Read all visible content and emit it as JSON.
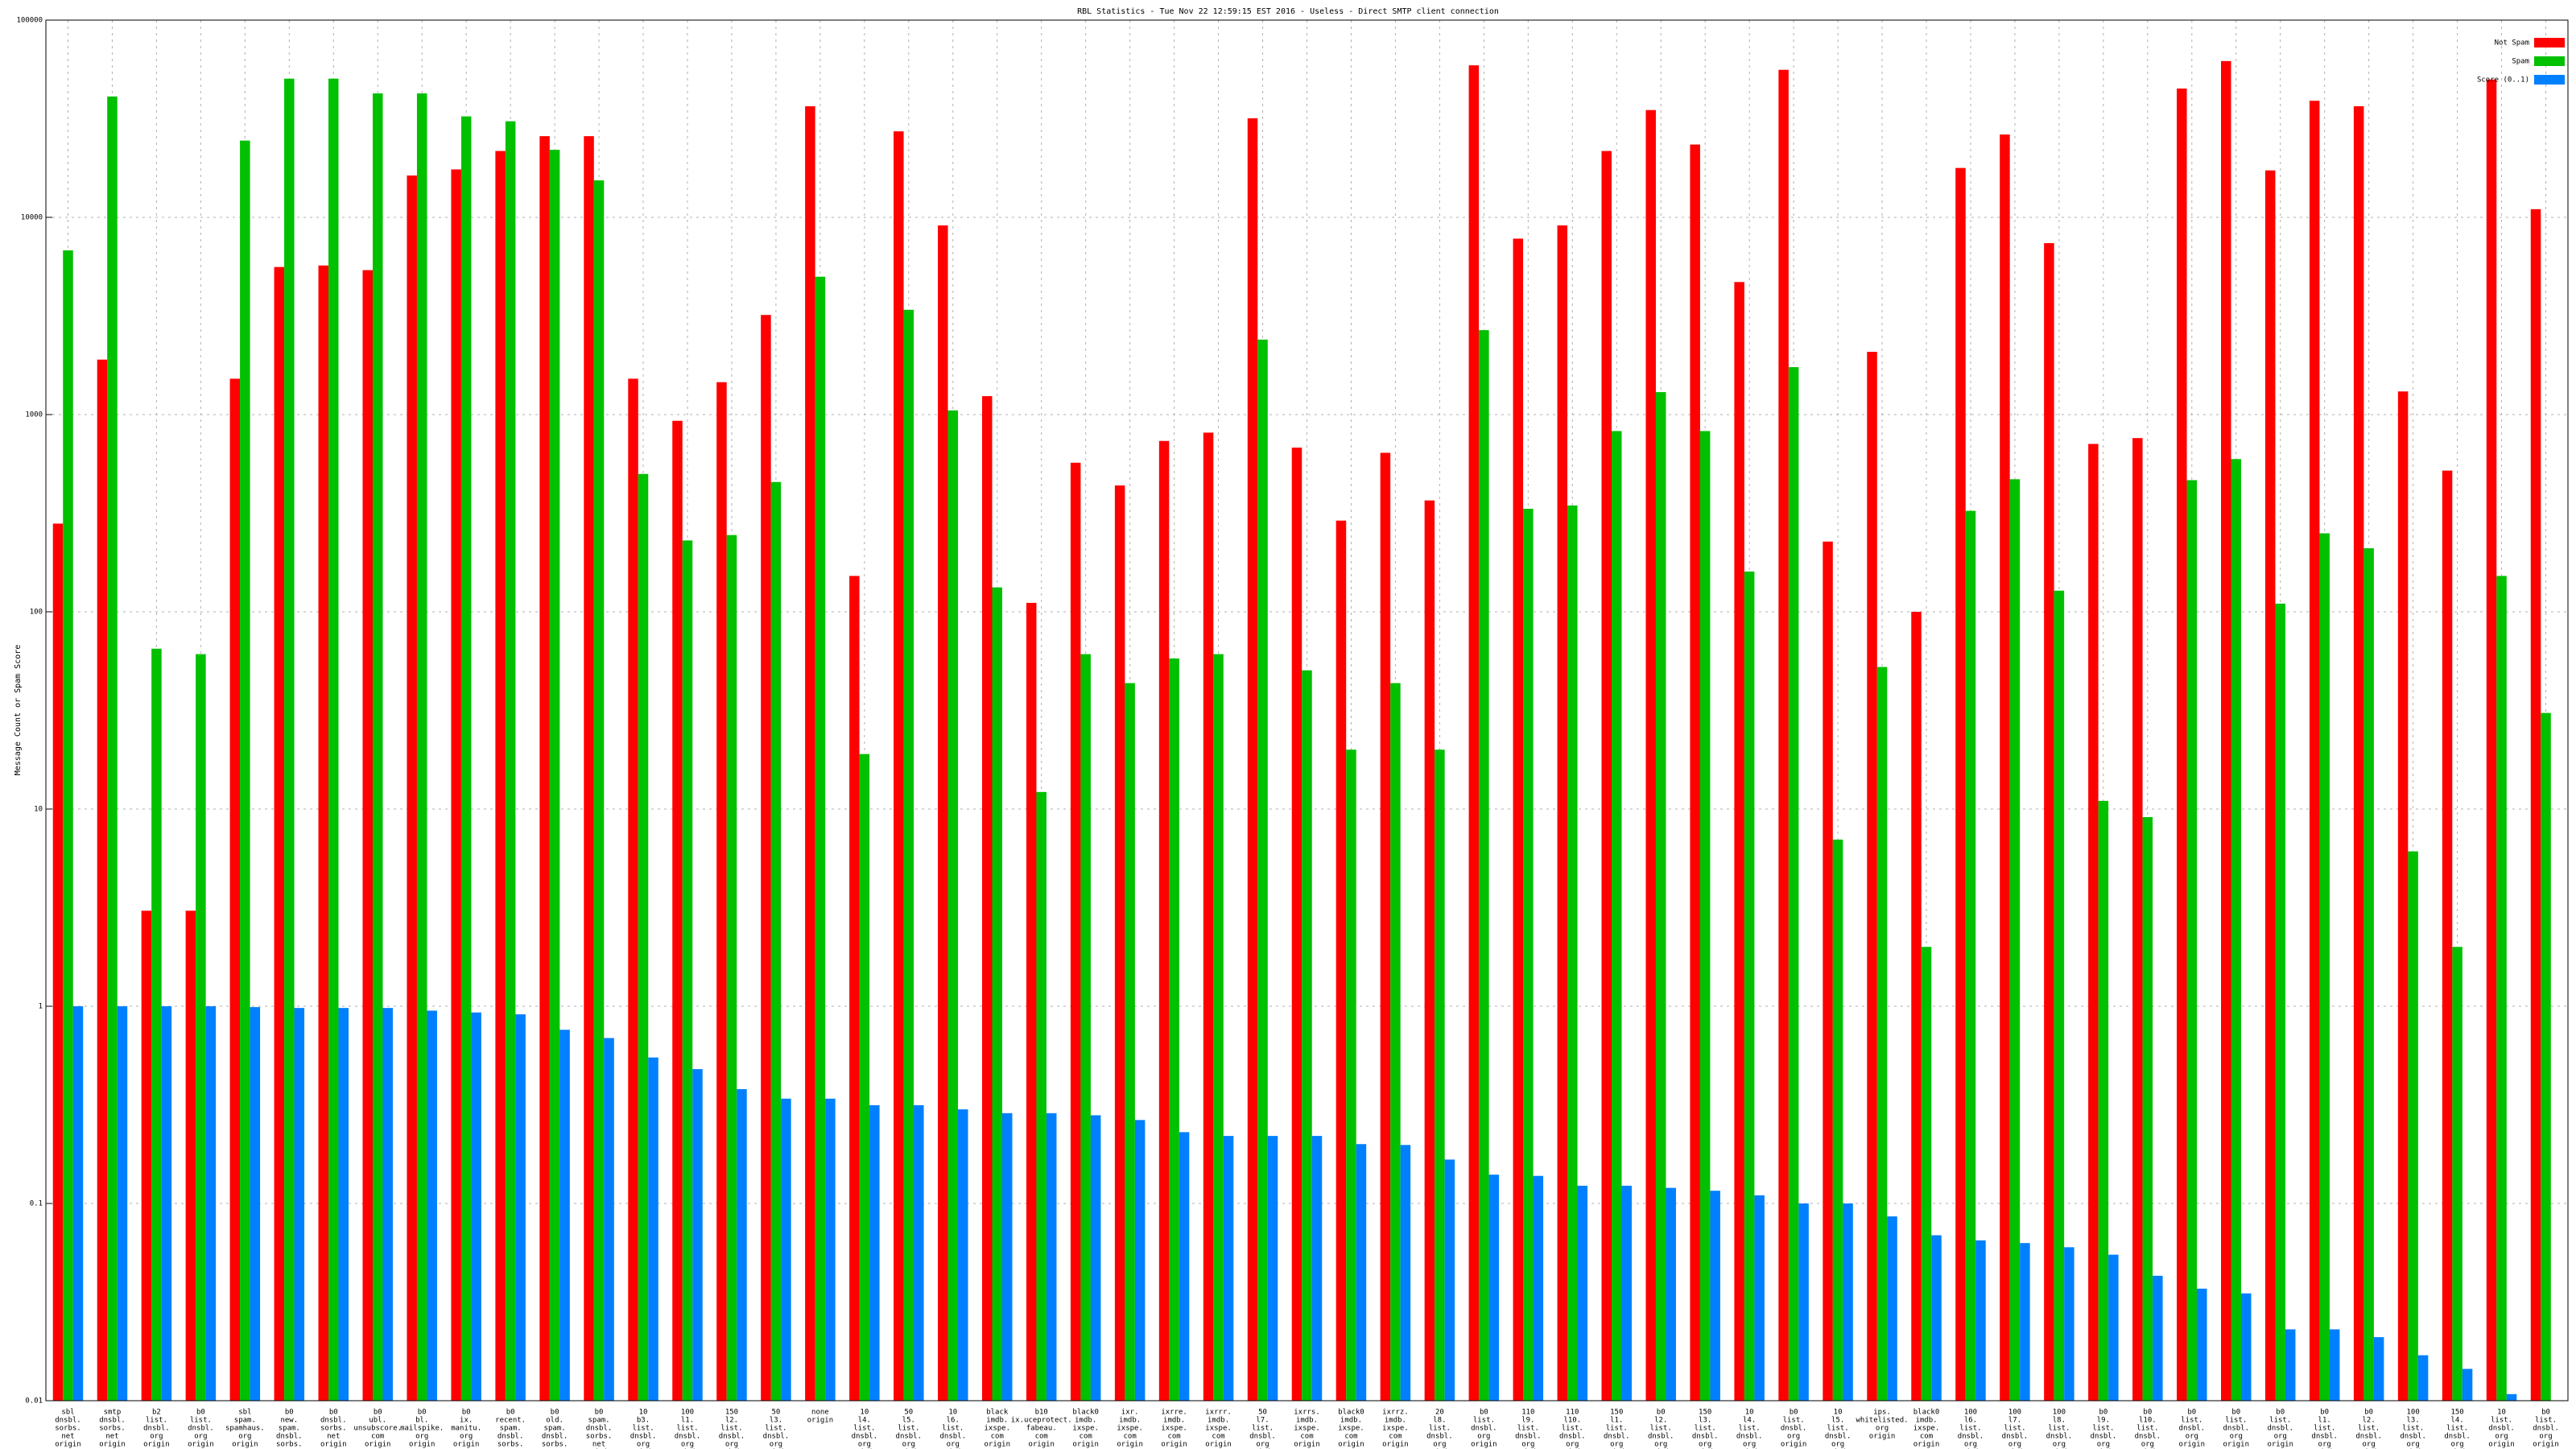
{
  "chart_data": {
    "type": "bar",
    "title": "RBL Statistics - Tue Nov 22 12:59:15 EST 2016 - Useless - Direct SMTP client connection",
    "y_label": "Message Count or Spam Score",
    "log_scale": true,
    "grid": true,
    "legend_position": "top-right",
    "ylim": [
      0.01,
      100000
    ],
    "yticks": [
      0.01,
      0.1,
      1,
      10,
      100,
      1000,
      10000,
      100000
    ],
    "categories": [
      [
        "sbl",
        "dnsbl.",
        "sorbs.",
        "net",
        "origin"
      ],
      [
        "smtp",
        "dnsbl.",
        "sorbs.",
        "net",
        "origin"
      ],
      [
        "b2",
        "list.",
        "dnsbl.",
        "org",
        "origin"
      ],
      [
        "b0",
        "list.",
        "dnsbl.",
        "org",
        "origin"
      ],
      [
        "sbl",
        "spam.",
        "spamhaus.",
        "org",
        "origin"
      ],
      [
        "b0",
        "new.",
        "spam.",
        "dnsbl.",
        "sorbs.",
        "net",
        "origin"
      ],
      [
        "b0",
        "dnsbl.",
        "sorbs.",
        "net",
        "origin"
      ],
      [
        "b0",
        "ubl.",
        "unsubscore.",
        "com",
        "origin"
      ],
      [
        "b0",
        "bl.",
        "mailspike.",
        "org",
        "origin"
      ],
      [
        "b0",
        "ix.",
        "manitu.",
        "org",
        "origin"
      ],
      [
        "b0",
        "recent.",
        "spam.",
        "dnsbl.",
        "sorbs.",
        "net",
        "origin"
      ],
      [
        "b0",
        "old.",
        "spam.",
        "dnsbl.",
        "sorbs.",
        "net",
        "origin"
      ],
      [
        "b0",
        "spam.",
        "dnsbl.",
        "sorbs.",
        "net",
        "origin"
      ],
      [
        "10",
        "b3.",
        "list.",
        "dnsbl.",
        "org",
        "origin"
      ],
      [
        "100",
        "l1.",
        "list.",
        "dnsbl.",
        "org",
        "origin"
      ],
      [
        "150",
        "l2.",
        "list.",
        "dnsbl.",
        "org",
        "origin"
      ],
      [
        "50",
        "l3.",
        "list.",
        "dnsbl.",
        "org",
        "origin"
      ],
      [
        "none",
        "origin"
      ],
      [
        "10",
        "l4.",
        "list.",
        "dnsbl.",
        "org",
        "origin"
      ],
      [
        "50",
        "l5.",
        "list.",
        "dnsbl.",
        "org",
        "origin"
      ],
      [
        "10",
        "l6.",
        "list.",
        "dnsbl.",
        "org",
        "origin"
      ],
      [
        "black",
        "imdb.",
        "ixspe.",
        "com",
        "origin"
      ],
      [
        "b10",
        "ix.uceprotect.",
        "fabeau.",
        "com",
        "origin"
      ],
      [
        "black0",
        "imdb.",
        "ixspe.",
        "com",
        "origin"
      ],
      [
        "ixr.",
        "imdb.",
        "ixspe.",
        "com",
        "origin"
      ],
      [
        "ixrre.",
        "imdb.",
        "ixspe.",
        "com",
        "origin"
      ],
      [
        "ixrrr.",
        "imdb.",
        "ixspe.",
        "com",
        "origin"
      ],
      [
        "50",
        "l7.",
        "list.",
        "dnsbl.",
        "org",
        "origin"
      ],
      [
        "ixrrs.",
        "imdb.",
        "ixspe.",
        "com",
        "origin"
      ],
      [
        "black0",
        "imdb.",
        "ixspe.",
        "com",
        "origin"
      ],
      [
        "ixrrz.",
        "imdb.",
        "ixspe.",
        "com",
        "origin"
      ],
      [
        "20",
        "l8.",
        "list.",
        "dnsbl.",
        "org",
        "origin"
      ],
      [
        "b0",
        "list.",
        "dnsbl.",
        "org",
        "origin"
      ],
      [
        "110",
        "l9.",
        "list.",
        "dnsbl.",
        "org",
        "origin"
      ],
      [
        "110",
        "l10.",
        "list.",
        "dnsbl.",
        "org",
        "origin"
      ],
      [
        "150",
        "l1.",
        "list.",
        "dnsbl.",
        "org",
        "origin"
      ],
      [
        "b0",
        "l2.",
        "list.",
        "dnsbl.",
        "org",
        "origin"
      ],
      [
        "150",
        "l3.",
        "list.",
        "dnsbl.",
        "org",
        "origin"
      ],
      [
        "10",
        "l4.",
        "list.",
        "dnsbl.",
        "org",
        "origin"
      ],
      [
        "b0",
        "list.",
        "dnsbl.",
        "org",
        "origin"
      ],
      [
        "10",
        "l5.",
        "list.",
        "dnsbl.",
        "org",
        "origin"
      ],
      [
        "ips.",
        "whitelisted.",
        "org",
        "origin"
      ],
      [
        "black0",
        "imdb.",
        "ixspe.",
        "com",
        "origin"
      ],
      [
        "100",
        "l6.",
        "list.",
        "dnsbl.",
        "org",
        "origin"
      ],
      [
        "100",
        "l7.",
        "list.",
        "dnsbl.",
        "org",
        "origin"
      ],
      [
        "100",
        "l8.",
        "list.",
        "dnsbl.",
        "org",
        "origin"
      ],
      [
        "b0",
        "l9.",
        "list.",
        "dnsbl.",
        "org",
        "origin"
      ],
      [
        "b0",
        "l10.",
        "list.",
        "dnsbl.",
        "org",
        "origin"
      ],
      [
        "b0",
        "list.",
        "dnsbl.",
        "org",
        "origin"
      ],
      [
        "b0",
        "list.",
        "dnsbl.",
        "org",
        "origin"
      ],
      [
        "b0",
        "list.",
        "dnsbl.",
        "org",
        "origin"
      ],
      [
        "b0",
        "l1.",
        "list.",
        "dnsbl.",
        "org",
        "origin"
      ],
      [
        "b0",
        "l2.",
        "list.",
        "dnsbl.",
        "org",
        "origin"
      ],
      [
        "100",
        "l3.",
        "list.",
        "dnsbl.",
        "org",
        "origin"
      ],
      [
        "150",
        "l4.",
        "list.",
        "dnsbl.",
        "org",
        "origin"
      ],
      [
        "10",
        "list.",
        "dnsbl.",
        "org",
        "origin"
      ],
      [
        "b0",
        "list.",
        "dnsbl.",
        "org",
        "origin"
      ]
    ],
    "series": [
      {
        "name": "Not Spam",
        "color": "#ff0000",
        "values": [
          280,
          1900,
          3.05,
          3.05,
          1520,
          5600,
          5700,
          5400,
          16300,
          17500,
          21700,
          25800,
          25800,
          1520,
          930,
          1460,
          3200,
          36600,
          152,
          27300,
          9100,
          1240,
          111,
          570,
          437,
          735,
          810,
          31800,
          680,
          290,
          640,
          367,
          59000,
          7800,
          9100,
          21700,
          35000,
          23400,
          4700,
          56000,
          227,
          2080,
          100,
          17800,
          26300,
          7400,
          710,
          760,
          45000,
          62000,
          17300,
          39000,
          36600,
          1310,
          520,
          50000,
          11000
        ]
      },
      {
        "name": "Spam",
        "color": "#00c000",
        "values": [
          6800,
          41000,
          65,
          61,
          24500,
          50500,
          50500,
          42500,
          42500,
          32500,
          30700,
          22000,
          15400,
          500,
          230,
          245,
          455,
          5000,
          19,
          3400,
          1050,
          133,
          12.2,
          61,
          43.5,
          58,
          61,
          2400,
          50.5,
          20,
          43.5,
          20,
          2680,
          333,
          346,
          825,
          1300,
          825,
          160,
          1740,
          7.0,
          52.5,
          2.0,
          325,
          470,
          128,
          11.0,
          9.1,
          465,
          595,
          110,
          250,
          210,
          6.1,
          2.0,
          152,
          30.7
        ]
      },
      {
        "name": "Score (0..1)",
        "color": "#0080ff",
        "values": [
          1.0,
          1.0,
          1.0,
          1.0,
          0.99,
          0.98,
          0.98,
          0.98,
          0.95,
          0.93,
          0.91,
          0.76,
          0.69,
          0.55,
          0.48,
          0.38,
          0.34,
          0.34,
          0.315,
          0.315,
          0.3,
          0.287,
          0.287,
          0.28,
          0.265,
          0.23,
          0.22,
          0.22,
          0.22,
          0.2,
          0.198,
          0.167,
          0.14,
          0.138,
          0.123,
          0.123,
          0.12,
          0.116,
          0.11,
          0.1,
          0.1,
          0.086,
          0.069,
          0.065,
          0.063,
          0.06,
          0.055,
          0.043,
          0.037,
          0.035,
          0.023,
          0.023,
          0.021,
          0.017,
          0.0145,
          0.0108,
          0.01
        ]
      }
    ]
  }
}
